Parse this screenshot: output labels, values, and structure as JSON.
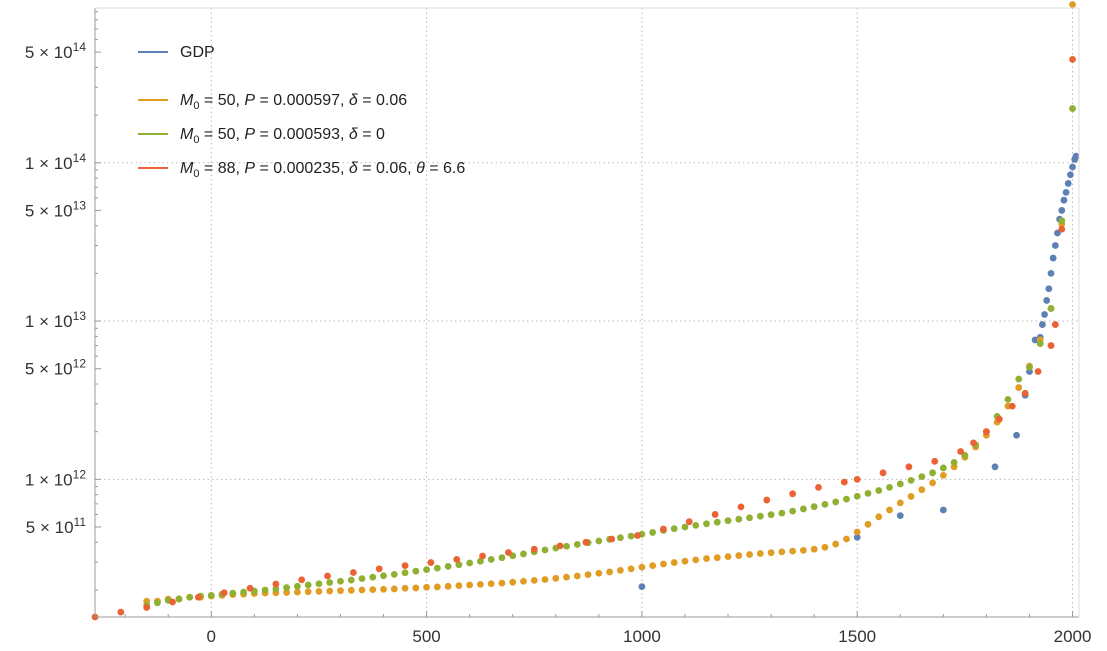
{
  "chart_data": {
    "type": "scatter",
    "title": "",
    "xlabel": "",
    "ylabel": "",
    "y_scale": "log",
    "xlim": [
      -270,
      2015
    ],
    "ylim": [
      135000000000.0,
      950000000000000.0
    ],
    "grid": "dotted, at x ticks and y major ticks",
    "legend_position": "top-left",
    "colors": {
      "GDP": "#5E81B5",
      "model_delta": "#E19C24",
      "model_nodelta": "#8FB032",
      "model_theta": "#EB6235",
      "grid": "#bbbbbb",
      "frame": "#999999"
    },
    "x_ticks": [
      {
        "value": 0,
        "label": "0"
      },
      {
        "value": 500,
        "label": "500"
      },
      {
        "value": 1000,
        "label": "1000"
      },
      {
        "value": 1500,
        "label": "1500"
      },
      {
        "value": 2000,
        "label": "2000"
      }
    ],
    "y_ticks": [
      {
        "value": 500000000000.0,
        "mantissa": "5",
        "exp": "11"
      },
      {
        "value": 1000000000000.0,
        "mantissa": "1",
        "exp": "12"
      },
      {
        "value": 5000000000000.0,
        "mantissa": "5",
        "exp": "12"
      },
      {
        "value": 10000000000000.0,
        "mantissa": "1",
        "exp": "13"
      },
      {
        "value": 50000000000000.0,
        "mantissa": "5",
        "exp": "13"
      },
      {
        "value": 100000000000000.0,
        "mantissa": "1",
        "exp": "14"
      },
      {
        "value": 500000000000000.0,
        "mantissa": "5",
        "exp": "14"
      }
    ],
    "series": [
      {
        "name": "GDP",
        "legend": {
          "plain": "GDP"
        },
        "color": "#5E81B5",
        "points": [
          [
            1000,
            210000000000.0
          ],
          [
            1500,
            430000000000.0
          ],
          [
            1600,
            590000000000.0
          ],
          [
            1700,
            640000000000.0
          ],
          [
            1820,
            1200000000000.0
          ],
          [
            1870,
            1900000000000.0
          ],
          [
            1890,
            3400000000000.0
          ],
          [
            1900,
            4800000000000.0
          ],
          [
            1913,
            7600000000000.0
          ],
          [
            1925,
            7900000000000.0
          ],
          [
            1930,
            9500000000000.0
          ],
          [
            1935,
            11000000000000.0
          ],
          [
            1940,
            13500000000000.0
          ],
          [
            1945,
            16000000000000.0
          ],
          [
            1950,
            20000000000000.0
          ],
          [
            1955,
            25000000000000.0
          ],
          [
            1960,
            30000000000000.0
          ],
          [
            1965,
            36000000000000.0
          ],
          [
            1970,
            44000000000000.0
          ],
          [
            1975,
            50000000000000.0
          ],
          [
            1980,
            58000000000000.0
          ],
          [
            1985,
            65000000000000.0
          ],
          [
            1990,
            74000000000000.0
          ],
          [
            1995,
            84000000000000.0
          ],
          [
            2000,
            94000000000000.0
          ],
          [
            2005,
            105000000000000.0
          ],
          [
            2008,
            110000000000000.0
          ]
        ]
      },
      {
        "name": "M0 = 50, P = 0.000597, δ = 0.06",
        "legend": {
          "m": "M",
          "sub": "0",
          "rest1": " = 50, ",
          "p": "P",
          "rest2": " = 0.000597, ",
          "d": "δ",
          "rest3": " = 0.06"
        },
        "color": "#E19C24",
        "points": [
          [
            -150,
            170000000000.0
          ],
          [
            -125,
            170000000000.0
          ],
          [
            -100,
            175000000000.0
          ],
          [
            -75,
            175000000000.0
          ],
          [
            -50,
            180000000000.0
          ],
          [
            -25,
            180000000000.0
          ],
          [
            0,
            183000000000.0
          ],
          [
            25,
            185000000000.0
          ],
          [
            50,
            187000000000.0
          ],
          [
            75,
            188000000000.0
          ],
          [
            100,
            190000000000.0
          ],
          [
            125,
            191000000000.0
          ],
          [
            150,
            192000000000.0
          ],
          [
            175,
            193000000000.0
          ],
          [
            200,
            194000000000.0
          ],
          [
            225,
            195000000000.0
          ],
          [
            250,
            196000000000.0
          ],
          [
            275,
            197000000000.0
          ],
          [
            300,
            198000000000.0
          ],
          [
            325,
            199000000000.0
          ],
          [
            350,
            200000000000.0
          ],
          [
            375,
            201000000000.0
          ],
          [
            400,
            202000000000.0
          ],
          [
            425,
            203000000000.0
          ],
          [
            450,
            205000000000.0
          ],
          [
            475,
            206000000000.0
          ],
          [
            500,
            208000000000.0
          ],
          [
            525,
            209000000000.0
          ],
          [
            550,
            211000000000.0
          ],
          [
            575,
            213000000000.0
          ],
          [
            600,
            215000000000.0
          ],
          [
            625,
            217000000000.0
          ],
          [
            650,
            219000000000.0
          ],
          [
            675,
            221000000000.0
          ],
          [
            700,
            224000000000.0
          ],
          [
            725,
            227000000000.0
          ],
          [
            750,
            230000000000.0
          ],
          [
            775,
            233000000000.0
          ],
          [
            800,
            237000000000.0
          ],
          [
            825,
            241000000000.0
          ],
          [
            850,
            245000000000.0
          ],
          [
            875,
            250000000000.0
          ],
          [
            900,
            255000000000.0
          ],
          [
            925,
            260000000000.0
          ],
          [
            950,
            266000000000.0
          ],
          [
            975,
            272000000000.0
          ],
          [
            1000,
            279000000000.0
          ],
          [
            1025,
            285000000000.0
          ],
          [
            1050,
            292000000000.0
          ],
          [
            1075,
            298000000000.0
          ],
          [
            1100,
            304000000000.0
          ],
          [
            1125,
            310000000000.0
          ],
          [
            1150,
            316000000000.0
          ],
          [
            1175,
            320000000000.0
          ],
          [
            1200,
            325000000000.0
          ],
          [
            1225,
            330000000000.0
          ],
          [
            1250,
            335000000000.0
          ],
          [
            1275,
            340000000000.0
          ],
          [
            1300,
            344000000000.0
          ],
          [
            1325,
            348000000000.0
          ],
          [
            1350,
            352000000000.0
          ],
          [
            1375,
            356000000000.0
          ],
          [
            1400,
            362000000000.0
          ],
          [
            1425,
            372000000000.0
          ],
          [
            1450,
            390000000000.0
          ],
          [
            1475,
            420000000000.0
          ],
          [
            1500,
            465000000000.0
          ],
          [
            1525,
            520000000000.0
          ],
          [
            1550,
            580000000000.0
          ],
          [
            1575,
            640000000000.0
          ],
          [
            1600,
            710000000000.0
          ],
          [
            1625,
            780000000000.0
          ],
          [
            1650,
            860000000000.0
          ],
          [
            1675,
            950000000000.0
          ],
          [
            1700,
            1060000000000.0
          ],
          [
            1725,
            1200000000000.0
          ],
          [
            1750,
            1380000000000.0
          ],
          [
            1775,
            1600000000000.0
          ],
          [
            1800,
            1900000000000.0
          ],
          [
            1825,
            2300000000000.0
          ],
          [
            1850,
            2900000000000.0
          ],
          [
            1875,
            3800000000000.0
          ],
          [
            1900,
            5200000000000.0
          ],
          [
            1925,
            7600000000000.0
          ],
          [
            1950,
            12000000000000.0
          ],
          [
            1975,
            41000000000000.0
          ],
          [
            2000,
            1000000000000000.0
          ]
        ]
      },
      {
        "name": "M0 = 50, P = 0.000593, δ = 0",
        "legend": {
          "m": "M",
          "sub": "0",
          "rest1": " = 50, ",
          "p": "P",
          "rest2": " = 0.000593, ",
          "d": "δ",
          "rest3": " = 0"
        },
        "color": "#8FB032",
        "points": [
          [
            -150,
            160000000000.0
          ],
          [
            -125,
            166000000000.0
          ],
          [
            -100,
            172000000000.0
          ],
          [
            -75,
            176000000000.0
          ],
          [
            -50,
            180000000000.0
          ],
          [
            -25,
            183000000000.0
          ],
          [
            0,
            185000000000.0
          ],
          [
            25,
            188000000000.0
          ],
          [
            50,
            191000000000.0
          ],
          [
            75,
            194000000000.0
          ],
          [
            100,
            197000000000.0
          ],
          [
            125,
            200000000000.0
          ],
          [
            150,
            203000000000.0
          ],
          [
            175,
            207000000000.0
          ],
          [
            200,
            211000000000.0
          ],
          [
            225,
            215000000000.0
          ],
          [
            250,
            219000000000.0
          ],
          [
            275,
            223000000000.0
          ],
          [
            300,
            227000000000.0
          ],
          [
            325,
            231000000000.0
          ],
          [
            350,
            236000000000.0
          ],
          [
            375,
            241000000000.0
          ],
          [
            400,
            246000000000.0
          ],
          [
            425,
            251000000000.0
          ],
          [
            450,
            257000000000.0
          ],
          [
            475,
            263000000000.0
          ],
          [
            500,
            269000000000.0
          ],
          [
            525,
            275000000000.0
          ],
          [
            550,
            282000000000.0
          ],
          [
            575,
            289000000000.0
          ],
          [
            600,
            296000000000.0
          ],
          [
            625,
            304000000000.0
          ],
          [
            650,
            312000000000.0
          ],
          [
            675,
            320000000000.0
          ],
          [
            700,
            329000000000.0
          ],
          [
            725,
            338000000000.0
          ],
          [
            750,
            348000000000.0
          ],
          [
            775,
            358000000000.0
          ],
          [
            800,
            368000000000.0
          ],
          [
            825,
            378000000000.0
          ],
          [
            850,
            388000000000.0
          ],
          [
            875,
            398000000000.0
          ],
          [
            900,
            408000000000.0
          ],
          [
            925,
            418000000000.0
          ],
          [
            950,
            428000000000.0
          ],
          [
            975,
            438000000000.0
          ],
          [
            1000,
            450000000000.0
          ],
          [
            1025,
            462000000000.0
          ],
          [
            1050,
            475000000000.0
          ],
          [
            1075,
            488000000000.0
          ],
          [
            1100,
            500000000000.0
          ],
          [
            1125,
            512000000000.0
          ],
          [
            1150,
            524000000000.0
          ],
          [
            1175,
            536000000000.0
          ],
          [
            1200,
            548000000000.0
          ],
          [
            1225,
            560000000000.0
          ],
          [
            1250,
            572000000000.0
          ],
          [
            1275,
            585000000000.0
          ],
          [
            1300,
            598000000000.0
          ],
          [
            1325,
            612000000000.0
          ],
          [
            1350,
            630000000000.0
          ],
          [
            1375,
            650000000000.0
          ],
          [
            1400,
            672000000000.0
          ],
          [
            1425,
            695000000000.0
          ],
          [
            1450,
            720000000000.0
          ],
          [
            1475,
            750000000000.0
          ],
          [
            1500,
            782000000000.0
          ],
          [
            1525,
            815000000000.0
          ],
          [
            1550,
            850000000000.0
          ],
          [
            1575,
            890000000000.0
          ],
          [
            1600,
            935000000000.0
          ],
          [
            1625,
            985000000000.0
          ],
          [
            1650,
            1040000000000.0
          ],
          [
            1675,
            1100000000000.0
          ],
          [
            1700,
            1180000000000.0
          ],
          [
            1725,
            1280000000000.0
          ],
          [
            1750,
            1420000000000.0
          ],
          [
            1775,
            1650000000000.0
          ],
          [
            1800,
            2000000000000.0
          ],
          [
            1825,
            2500000000000.0
          ],
          [
            1850,
            3200000000000.0
          ],
          [
            1875,
            4300000000000.0
          ],
          [
            1900,
            5100000000000.0
          ],
          [
            1925,
            7200000000000.0
          ],
          [
            1950,
            12000000000000.0
          ],
          [
            1975,
            43000000000000.0
          ],
          [
            2000,
            220000000000000.0
          ]
        ]
      },
      {
        "name": "M0 = 88, P = 0.000235, δ = 0.06, θ = 6.6",
        "legend": {
          "m": "M",
          "sub": "0",
          "rest1": " = 88, ",
          "p": "P",
          "rest2": " = 0.000235, ",
          "d": "δ",
          "rest3": " = 0.06, ",
          "t": "θ",
          "rest4": " = 6.6"
        },
        "color": "#EB6235",
        "points": [
          [
            -270,
            135000000000.0
          ],
          [
            -210,
            145000000000.0
          ],
          [
            -150,
            155000000000.0
          ],
          [
            -90,
            168000000000.0
          ],
          [
            -30,
            180000000000.0
          ],
          [
            30,
            192000000000.0
          ],
          [
            90,
            205000000000.0
          ],
          [
            150,
            218000000000.0
          ],
          [
            210,
            232000000000.0
          ],
          [
            270,
            245000000000.0
          ],
          [
            330,
            258000000000.0
          ],
          [
            390,
            272000000000.0
          ],
          [
            450,
            285000000000.0
          ],
          [
            510,
            298000000000.0
          ],
          [
            570,
            312000000000.0
          ],
          [
            630,
            328000000000.0
          ],
          [
            690,
            345000000000.0
          ],
          [
            750,
            362000000000.0
          ],
          [
            810,
            380000000000.0
          ],
          [
            870,
            400000000000.0
          ],
          [
            930,
            420000000000.0
          ],
          [
            990,
            442000000000.0
          ],
          [
            1050,
            485000000000.0
          ],
          [
            1110,
            540000000000.0
          ],
          [
            1170,
            600000000000.0
          ],
          [
            1230,
            670000000000.0
          ],
          [
            1290,
            740000000000.0
          ],
          [
            1350,
            810000000000.0
          ],
          [
            1410,
            890000000000.0
          ],
          [
            1470,
            960000000000.0
          ],
          [
            1500,
            1000000000000.0
          ],
          [
            1560,
            1100000000000.0
          ],
          [
            1620,
            1200000000000.0
          ],
          [
            1680,
            1300000000000.0
          ],
          [
            1740,
            1500000000000.0
          ],
          [
            1770,
            1700000000000.0
          ],
          [
            1800,
            2000000000000.0
          ],
          [
            1830,
            2400000000000.0
          ],
          [
            1860,
            2900000000000.0
          ],
          [
            1890,
            3500000000000.0
          ],
          [
            1920,
            4800000000000.0
          ],
          [
            1950,
            7000000000000.0
          ],
          [
            1960,
            9500000000000.0
          ],
          [
            1975,
            38000000000000.0
          ],
          [
            2000,
            450000000000000.0
          ]
        ]
      }
    ]
  }
}
